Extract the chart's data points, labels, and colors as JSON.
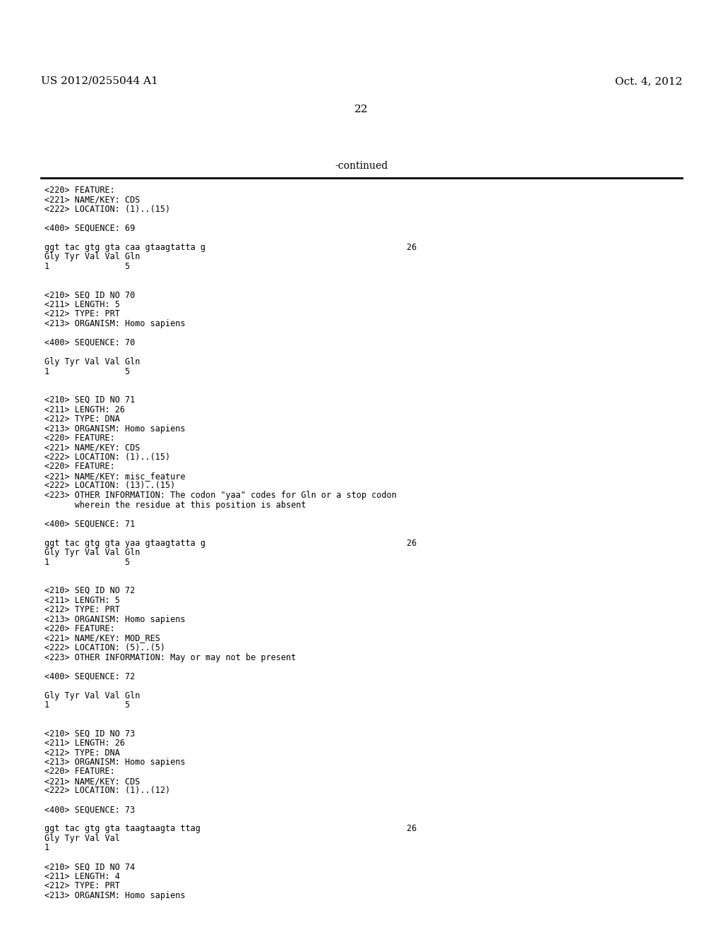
{
  "header_left": "US 2012/0255044 A1",
  "header_right": "Oct. 4, 2012",
  "page_number": "22",
  "continued_text": "-continued",
  "background_color": "#ffffff",
  "text_color": "#000000",
  "header_fontsize": 11,
  "page_num_fontsize": 11,
  "continued_fontsize": 10,
  "mono_font_size": 8.5,
  "content_lines": [
    "<220> FEATURE:",
    "<221> NAME/KEY: CDS",
    "<222> LOCATION: (1)..(15)",
    "",
    "<400> SEQUENCE: 69",
    "",
    "ggt tac gtg gta caa gtaagtatta g                                        26",
    "Gly Tyr Val Val Gln",
    "1               5",
    "",
    "",
    "<210> SEQ ID NO 70",
    "<211> LENGTH: 5",
    "<212> TYPE: PRT",
    "<213> ORGANISM: Homo sapiens",
    "",
    "<400> SEQUENCE: 70",
    "",
    "Gly Tyr Val Val Gln",
    "1               5",
    "",
    "",
    "<210> SEQ ID NO 71",
    "<211> LENGTH: 26",
    "<212> TYPE: DNA",
    "<213> ORGANISM: Homo sapiens",
    "<220> FEATURE:",
    "<221> NAME/KEY: CDS",
    "<222> LOCATION: (1)..(15)",
    "<220> FEATURE:",
    "<221> NAME/KEY: misc_feature",
    "<222> LOCATION: (13)..(15)",
    "<223> OTHER INFORMATION: The codon \"yaa\" codes for Gln or a stop codon",
    "      wherein the residue at this position is absent",
    "",
    "<400> SEQUENCE: 71",
    "",
    "ggt tac gtg gta yaa gtaagtatta g                                        26",
    "Gly Tyr Val Val Gln",
    "1               5",
    "",
    "",
    "<210> SEQ ID NO 72",
    "<211> LENGTH: 5",
    "<212> TYPE: PRT",
    "<213> ORGANISM: Homo sapiens",
    "<220> FEATURE:",
    "<221> NAME/KEY: MOD_RES",
    "<222> LOCATION: (5)..(5)",
    "<223> OTHER INFORMATION: May or may not be present",
    "",
    "<400> SEQUENCE: 72",
    "",
    "Gly Tyr Val Val Gln",
    "1               5",
    "",
    "",
    "<210> SEQ ID NO 73",
    "<211> LENGTH: 26",
    "<212> TYPE: DNA",
    "<213> ORGANISM: Homo sapiens",
    "<220> FEATURE:",
    "<221> NAME/KEY: CDS",
    "<222> LOCATION: (1)..(12)",
    "",
    "<400> SEQUENCE: 73",
    "",
    "ggt tac gtg gta taagtaagta ttag                                         26",
    "Gly Tyr Val Val",
    "1",
    "",
    "<210> SEQ ID NO 74",
    "<211> LENGTH: 4",
    "<212> TYPE: PRT",
    "<213> ORGANISM: Homo sapiens"
  ]
}
